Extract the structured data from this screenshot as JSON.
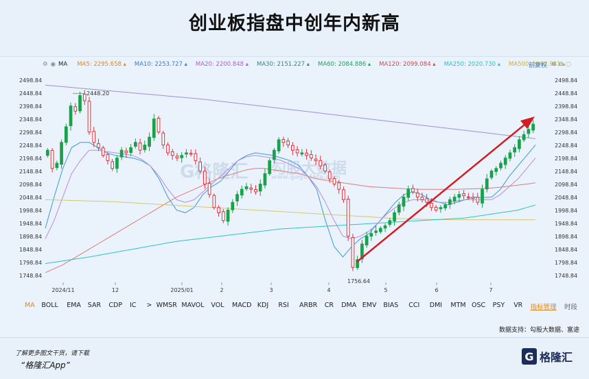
{
  "title": "创业板指盘中创年内新高",
  "ma_bar": {
    "settings_icon": "gear-icon",
    "indicator": "MA",
    "items": [
      {
        "label": "MA5:",
        "value": "2295.658",
        "color": "#e08a1e"
      },
      {
        "label": "MA10:",
        "value": "2253.727",
        "color": "#3a7bd5"
      },
      {
        "label": "MA20:",
        "value": "2200.848",
        "color": "#b060d0"
      },
      {
        "label": "MA30:",
        "value": "2151.227",
        "color": "#2a8c8c"
      },
      {
        "label": "MA60:",
        "value": "2084.886",
        "color": "#20a060"
      },
      {
        "label": "MA120:",
        "value": "2099.084",
        "color": "#d04a4a"
      },
      {
        "label": "MA250:",
        "value": "2020.730",
        "color": "#29c3c8"
      },
      {
        "label": "MA500:",
        "value": "1962.941",
        "color": "#c9b32c"
      }
    ],
    "adjust": "前复权"
  },
  "indicators": [
    "MA",
    "BOLL",
    "EMA",
    "SAR",
    "CDP",
    "IC",
    ">",
    "WMSR",
    "MAVOL",
    "VOL",
    "MACD",
    "KDJ",
    "RSI",
    "ARBR",
    "CR",
    "DMA",
    "EMV",
    "BIAS",
    "CCI",
    "DMI",
    "MTM",
    "OSC",
    "PSY",
    "VR",
    "指标管理"
  ],
  "timeshare": "时段",
  "source": "数据支持：勾股大数据、富途",
  "footer": {
    "line1": "了解更多图文干货，请下载",
    "line2": "“格隆汇App”",
    "logo": "格隆汇"
  },
  "watermark": {
    "brand": "格隆汇",
    "site": "www.gogudata.com",
    "cn": "勾股大数据"
  },
  "colors": {
    "up": "#19a14b",
    "down": "#e0303c",
    "arrow": "#d21d25",
    "accent": "#e08a1e"
  },
  "chart_data": {
    "type": "candlestick",
    "y_ticks": [
      "2498.84",
      "2448.84",
      "2398.84",
      "2348.84",
      "2298.84",
      "2248.84",
      "2198.84",
      "2148.84",
      "2098.84",
      "2048.84",
      "1998.84",
      "1948.84",
      "1898.84",
      "1848.84",
      "1798.84",
      "1748.84"
    ],
    "ylim": [
      1748.84,
      2498.84
    ],
    "x_ticks": [
      "2024/11",
      "12",
      "2025/01",
      "2",
      "3",
      "4",
      "5",
      "6",
      "7"
    ],
    "annotations": {
      "high": "2448.20",
      "low": "1756.64"
    },
    "closes": [
      2230,
      2160,
      2180,
      2260,
      2320,
      2400,
      2380,
      2440,
      2420,
      2300,
      2260,
      2240,
      2210,
      2190,
      2160,
      2200,
      2230,
      2220,
      2240,
      2260,
      2230,
      2250,
      2280,
      2350,
      2300,
      2250,
      2220,
      2210,
      2200,
      2210,
      2220,
      2215,
      2190,
      2150,
      2100,
      2060,
      2010,
      1990,
      1960,
      2000,
      2030,
      2060,
      2080,
      2090,
      2080,
      2070,
      2100,
      2140,
      2190,
      2230,
      2270,
      2260,
      2250,
      2230,
      2220,
      2220,
      2210,
      2200,
      2190,
      2170,
      2150,
      2120,
      2100,
      2080,
      2040,
      1900,
      1780,
      1810,
      1870,
      1900,
      1910,
      1920,
      1930,
      1940,
      1960,
      1990,
      2020,
      2050,
      2080,
      2070,
      2050,
      2040,
      2030,
      2010,
      2000,
      2010,
      2020,
      2040,
      2050,
      2060,
      2055,
      2050,
      2045,
      2030,
      2080,
      2120,
      2150,
      2160,
      2180,
      2200,
      2220,
      2240,
      2270,
      2290,
      2310,
      2330
    ],
    "series": [
      {
        "name": "MA10",
        "values": [
          1930,
          2050,
          2160,
          2240,
          2260,
          2260,
          2240,
          2220,
          2210,
          2205,
          2200,
          2190,
          2170,
          2120,
          2050,
          2000,
          1990,
          2010,
          2060,
          2090,
          2110,
          2150,
          2190,
          2210,
          2220,
          2215,
          2210,
          2200,
          2190,
          2170,
          2130,
          2080,
          1960,
          1860,
          1820,
          1860,
          1890,
          1910,
          1950,
          1990,
          2030,
          2060,
          2070,
          2060,
          2040,
          2030,
          2020,
          2030,
          2040,
          2050,
          2048,
          2050,
          2080,
          2130,
          2170,
          2210,
          2250
        ]
      },
      {
        "name": "MA20",
        "values": [
          1890,
          1960,
          2050,
          2140,
          2190,
          2230,
          2230,
          2225,
          2220,
          2215,
          2210,
          2195,
          2170,
          2130,
          2080,
          2040,
          2030,
          2040,
          2070,
          2100,
          2130,
          2160,
          2190,
          2205,
          2210,
          2205,
          2200,
          2190,
          2175,
          2160,
          2130,
          2090,
          2030,
          1960,
          1900,
          1890,
          1900,
          1920,
          1950,
          1985,
          2010,
          2030,
          2040,
          2040,
          2035,
          2030,
          2030,
          2035,
          2040,
          2040,
          2040,
          2040,
          2060,
          2090,
          2120,
          2160,
          2200
        ]
      },
      {
        "name": "MA120",
        "values": [
          1760,
          1775,
          1790,
          1810,
          1830,
          1850,
          1870,
          1890,
          1910,
          1930,
          1950,
          1970,
          1990,
          2010,
          2030,
          2050,
          2065,
          2080,
          2095,
          2110,
          2125,
          2135,
          2145,
          2155,
          2160,
          2160,
          2155,
          2150,
          2145,
          2140,
          2130,
          2120,
          2115,
          2110,
          2105,
          2100,
          2095,
          2090,
          2088,
          2086,
          2084,
          2082,
          2081,
          2080,
          2080,
          2080,
          2080,
          2080,
          2081,
          2082,
          2083,
          2085,
          2088,
          2092,
          2096,
          2100,
          2105
        ]
      },
      {
        "name": "MA500",
        "values": [
          2040,
          2039,
          2038,
          2037,
          2036,
          2035,
          2034,
          2033,
          2032,
          2030,
          2028,
          2026,
          2024,
          2022,
          2020,
          2018,
          2016,
          2014,
          2012,
          2010,
          2008,
          2006,
          2004,
          2002,
          2000,
          1998,
          1996,
          1994,
          1992,
          1990,
          1988,
          1986,
          1984,
          1982,
          1980,
          1978,
          1976,
          1974,
          1972,
          1970,
          1968,
          1967,
          1966,
          1965,
          1964,
          1964,
          1963,
          1963,
          1963,
          1963,
          1963,
          1963,
          1963,
          1963,
          1963,
          1963,
          1963
        ]
      },
      {
        "name": "MA250",
        "values": [
          1795,
          1800,
          1805,
          1810,
          1815,
          1820,
          1826,
          1832,
          1838,
          1844,
          1850,
          1856,
          1862,
          1868,
          1874,
          1880,
          1884,
          1888,
          1892,
          1896,
          1900,
          1904,
          1908,
          1912,
          1916,
          1920,
          1924,
          1928,
          1930,
          1932,
          1934,
          1936,
          1938,
          1940,
          1942,
          1944,
          1946,
          1948,
          1950,
          1952,
          1954,
          1956,
          1958,
          1960,
          1962,
          1964,
          1966,
          1968,
          1970,
          1975,
          1980,
          1985,
          1990,
          1995,
          2000,
          2010,
          2020
        ]
      },
      {
        "name": "ENV",
        "values": [
          2480,
          2477,
          2474,
          2471,
          2468,
          2465,
          2462,
          2459,
          2456,
          2453,
          2450,
          2447,
          2444,
          2441,
          2438,
          2435,
          2432,
          2429,
          2426,
          2422,
          2418,
          2414,
          2410,
          2406,
          2402,
          2398,
          2394,
          2390,
          2386,
          2382,
          2378,
          2374,
          2370,
          2366,
          2362,
          2358,
          2354,
          2350,
          2346,
          2342,
          2338,
          2334,
          2330,
          2326,
          2322,
          2318,
          2314,
          2310,
          2306,
          2302,
          2298,
          2294,
          2290,
          2286,
          2282,
          2278,
          2274
        ]
      }
    ]
  }
}
